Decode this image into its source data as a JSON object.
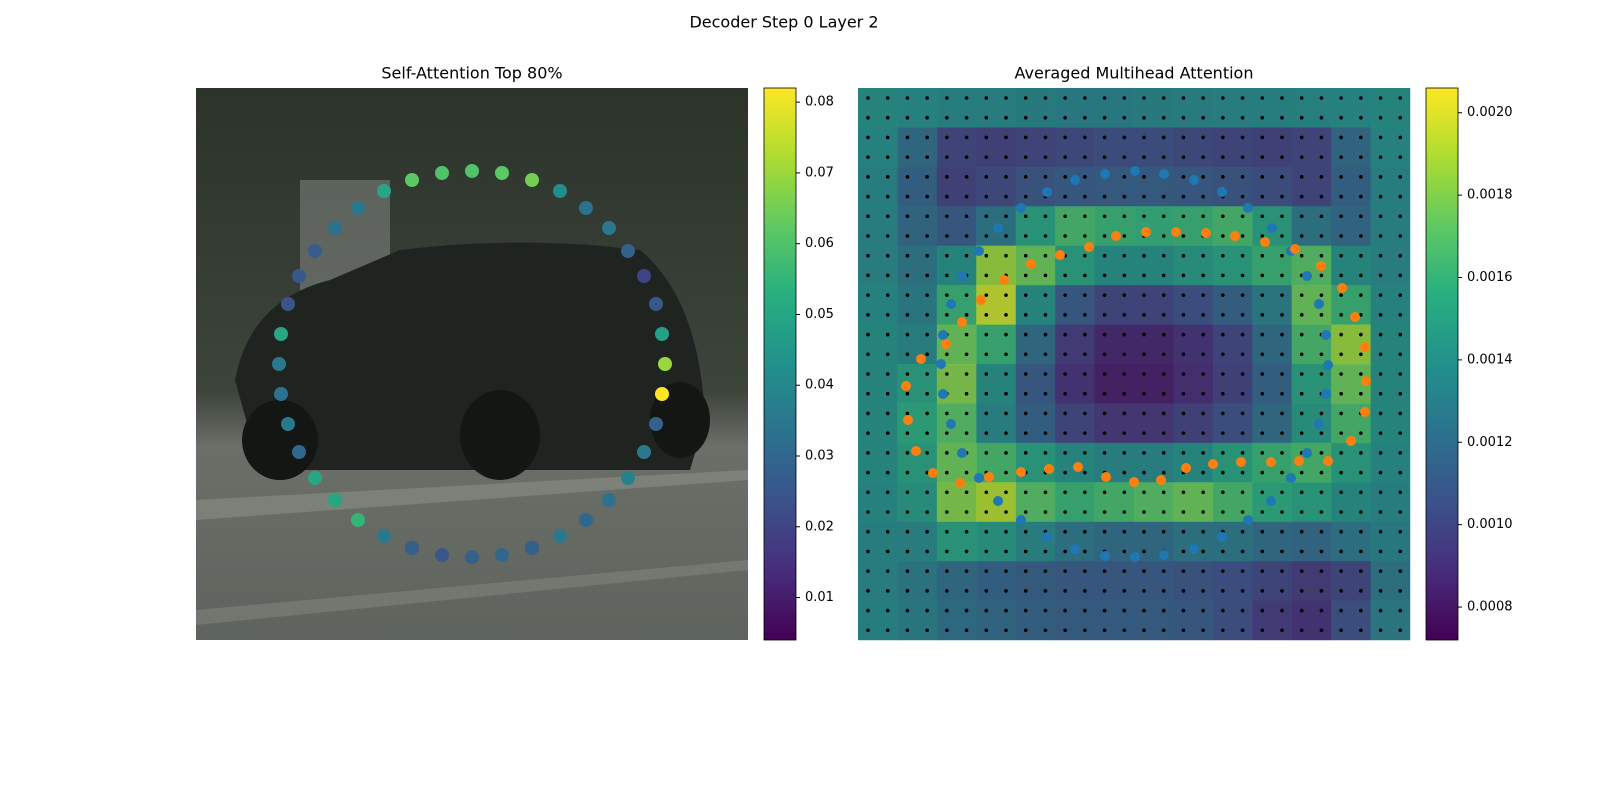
{
  "title": "Decoder Step 0 Layer 2",
  "chart_data": [
    {
      "type": "scatter",
      "title": "Self-Attention Top 80%",
      "colormap": "viridis",
      "xlim": [
        0,
        552
      ],
      "ylim": [
        0,
        552
      ],
      "x": [
        276,
        246,
        216,
        188,
        162,
        139,
        119,
        103,
        92,
        85,
        83,
        85,
        92,
        103,
        119,
        139,
        162,
        188,
        216,
        246,
        276,
        306,
        336,
        364,
        390,
        413,
        432,
        448,
        460,
        466,
        469,
        466,
        460,
        448,
        432,
        413,
        390,
        364,
        336,
        306
      ],
      "y": [
        83,
        85,
        92,
        103,
        120,
        140,
        163,
        188,
        216,
        246,
        276,
        306,
        336,
        364,
        390,
        412,
        432,
        448,
        460,
        467,
        469,
        467,
        460,
        448,
        432,
        412,
        390,
        364,
        336,
        306,
        276,
        246,
        216,
        188,
        163,
        140,
        120,
        103,
        92,
        85
      ],
      "values": [
        0.06,
        0.06,
        0.062,
        0.05,
        0.035,
        0.033,
        0.027,
        0.025,
        0.024,
        0.05,
        0.035,
        0.033,
        0.035,
        0.03,
        0.05,
        0.05,
        0.055,
        0.035,
        0.028,
        0.025,
        0.028,
        0.03,
        0.028,
        0.035,
        0.03,
        0.033,
        0.038,
        0.035,
        0.028,
        0.082,
        0.07,
        0.048,
        0.025,
        0.02,
        0.028,
        0.035,
        0.033,
        0.042,
        0.065,
        0.062
      ],
      "clim": [
        0.004,
        0.082
      ],
      "cticks": [
        0.01,
        0.02,
        0.03,
        0.04,
        0.05,
        0.06,
        0.07,
        0.08
      ]
    },
    {
      "type": "heatmap",
      "title": "Averaged Multihead Attention",
      "colormap": "viridis",
      "xlim": [
        0,
        552
      ],
      "ylim": [
        0,
        552
      ],
      "z": [
        [
          0.0014,
          0.00138,
          0.00136,
          0.00135,
          0.00133,
          0.00132,
          0.00132,
          0.00133,
          0.00134,
          0.00135,
          0.00136,
          0.00137,
          0.00138,
          0.0014
        ],
        [
          0.00138,
          0.0012,
          0.001,
          0.00098,
          0.001,
          0.00102,
          0.00104,
          0.00104,
          0.00102,
          0.001,
          0.00098,
          0.001,
          0.00118,
          0.00138
        ],
        [
          0.00136,
          0.00115,
          0.00098,
          0.00102,
          0.00108,
          0.0011,
          0.00112,
          0.00112,
          0.0011,
          0.00108,
          0.00104,
          0.001,
          0.00115,
          0.00136
        ],
        [
          0.00135,
          0.00118,
          0.0011,
          0.00125,
          0.0015,
          0.00165,
          0.0016,
          0.00158,
          0.0016,
          0.00165,
          0.0015,
          0.00125,
          0.00118,
          0.00135
        ],
        [
          0.00135,
          0.00125,
          0.0014,
          0.00185,
          0.00175,
          0.0015,
          0.0014,
          0.0014,
          0.00145,
          0.0015,
          0.0016,
          0.0017,
          0.0014,
          0.00135
        ],
        [
          0.00138,
          0.0013,
          0.0016,
          0.00195,
          0.0014,
          0.0011,
          0.001,
          0.001,
          0.00105,
          0.00115,
          0.0013,
          0.00175,
          0.0016,
          0.00138
        ],
        [
          0.0014,
          0.00135,
          0.00175,
          0.0016,
          0.0012,
          0.00095,
          0.00085,
          0.00085,
          0.0009,
          0.001,
          0.0012,
          0.00165,
          0.00185,
          0.0014
        ],
        [
          0.0014,
          0.0015,
          0.0018,
          0.0014,
          0.0011,
          0.0009,
          0.00082,
          0.00082,
          0.00088,
          0.00098,
          0.00115,
          0.0015,
          0.00175,
          0.0014
        ],
        [
          0.0014,
          0.00155,
          0.0017,
          0.00135,
          0.00115,
          0.001,
          0.00092,
          0.00092,
          0.00098,
          0.00105,
          0.0012,
          0.00145,
          0.00165,
          0.0014
        ],
        [
          0.0014,
          0.0015,
          0.00175,
          0.00165,
          0.0015,
          0.0014,
          0.00135,
          0.00135,
          0.0014,
          0.0015,
          0.0016,
          0.00165,
          0.0015,
          0.00138
        ],
        [
          0.00138,
          0.00145,
          0.0018,
          0.0019,
          0.0017,
          0.0016,
          0.00165,
          0.0017,
          0.00175,
          0.00165,
          0.00155,
          0.0015,
          0.0014,
          0.00135
        ],
        [
          0.00136,
          0.00135,
          0.0015,
          0.00145,
          0.00135,
          0.00125,
          0.0012,
          0.0012,
          0.00125,
          0.00125,
          0.0012,
          0.00118,
          0.00125,
          0.00132
        ],
        [
          0.00135,
          0.00128,
          0.0012,
          0.00115,
          0.00112,
          0.0011,
          0.0011,
          0.0011,
          0.00108,
          0.00105,
          0.001,
          0.00095,
          0.001,
          0.00125
        ],
        [
          0.00136,
          0.0013,
          0.00122,
          0.00118,
          0.00115,
          0.00112,
          0.00112,
          0.00112,
          0.0011,
          0.00105,
          0.00095,
          0.0009,
          0.00105,
          0.0013
        ]
      ],
      "clim": [
        0.00072,
        0.00206
      ],
      "cticks": [
        0.0008,
        {
          "value": 0.001,
          "label": "0.0010"
        },
        0.0012,
        0.0014,
        0.0016,
        0.0018,
        {
          "value": 0.002,
          "label": "0.0020"
        }
      ],
      "series": [
        {
          "color": "#1f77b4",
          "x": [
            277,
            247,
            217,
            189,
            163,
            140,
            121,
            104,
            93,
            85,
            83,
            85,
            93,
            104,
            121,
            140,
            163,
            189,
            217,
            247,
            277,
            306,
            336,
            364,
            390,
            413,
            433,
            449,
            461,
            468,
            470,
            468,
            461,
            449,
            433,
            414,
            390,
            364,
            336,
            306
          ],
          "y": [
            83,
            86,
            92,
            104,
            120,
            140,
            163,
            188,
            216,
            247,
            276,
            306,
            336,
            365,
            390,
            413,
            432,
            449,
            461,
            468,
            469,
            467,
            461,
            449,
            432,
            413,
            390,
            365,
            336,
            306,
            277,
            247,
            216,
            188,
            163,
            140,
            120,
            104,
            92,
            86
          ]
        },
        {
          "color": "#ff7f0e",
          "x": [
            288,
            258,
            231,
            202,
            173,
            146,
            123,
            104,
            88,
            63,
            48,
            50,
            58,
            75,
            102,
            131,
            163,
            191,
            220,
            248,
            276,
            303,
            328,
            355,
            383,
            413,
            441,
            470,
            493,
            507,
            508,
            507,
            497,
            484,
            463,
            437,
            407,
            377,
            348,
            318
          ],
          "y": [
            144,
            148,
            159,
            167,
            176,
            192,
            212,
            234,
            256,
            271,
            298,
            332,
            363,
            385,
            395,
            389,
            384,
            381,
            379,
            389,
            394,
            392,
            380,
            376,
            374,
            374,
            373,
            373,
            353,
            324,
            293,
            259,
            229,
            200,
            178,
            161,
            154,
            148,
            145,
            144
          ]
        }
      ]
    }
  ]
}
